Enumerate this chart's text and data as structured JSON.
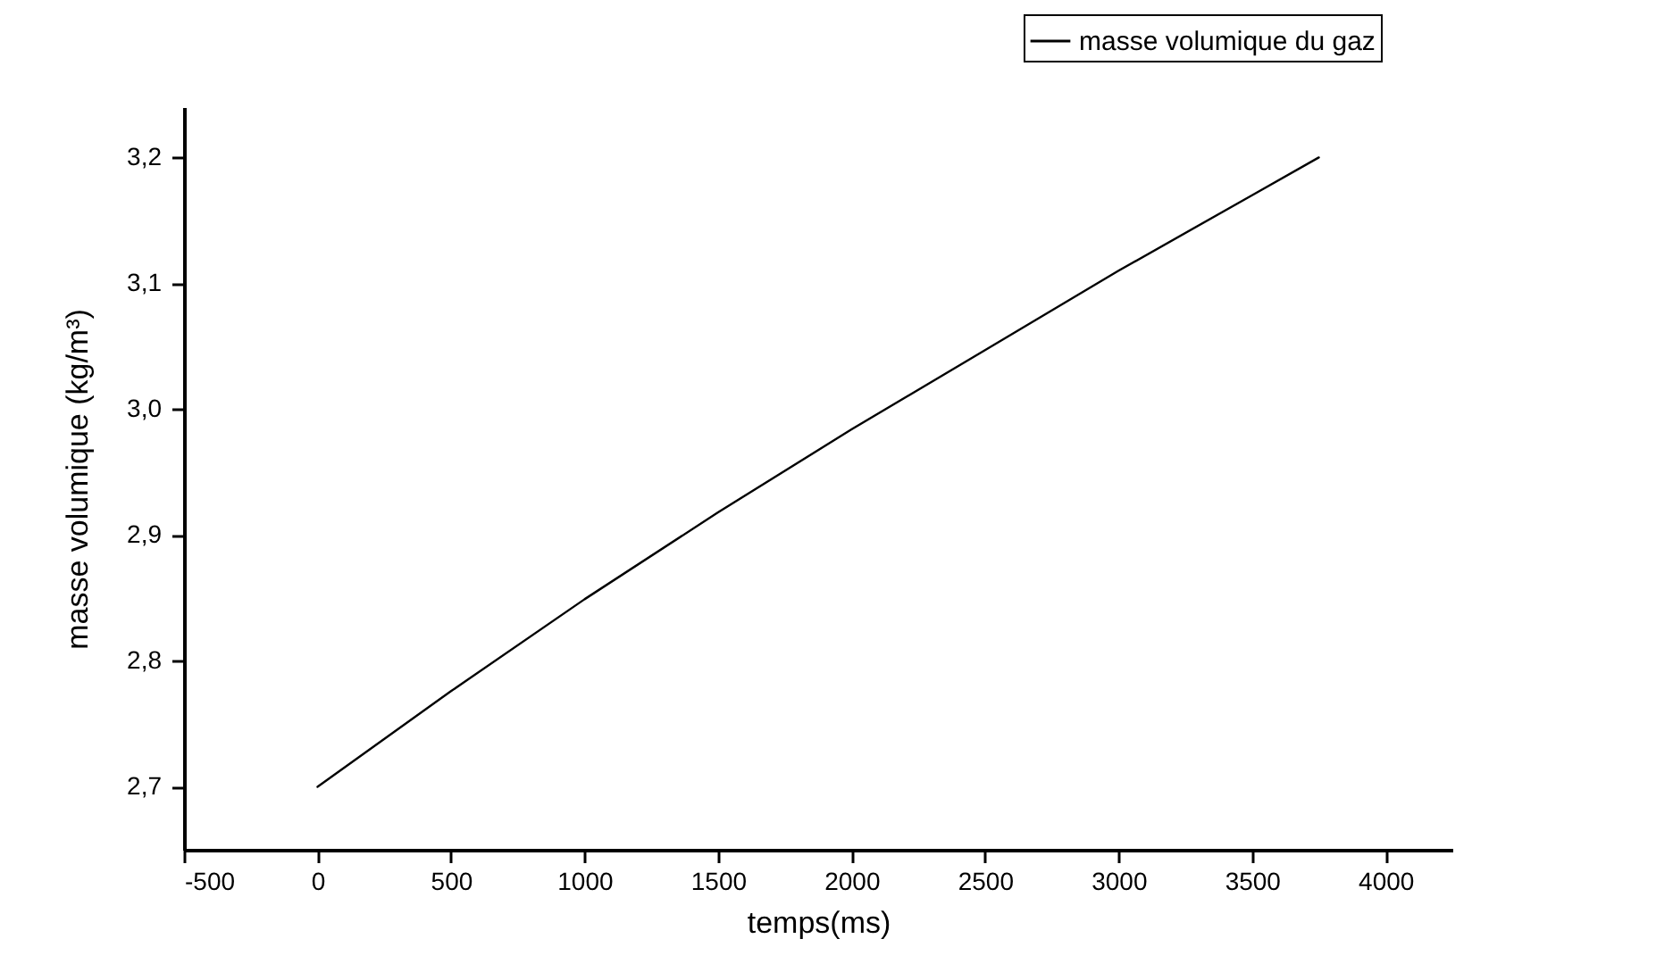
{
  "chart_data": {
    "type": "line",
    "xlabel": "temps(ms)",
    "ylabel": "masse volumique  (kg/m³)",
    "xlim": [
      -500,
      4250
    ],
    "xticks": [
      -500,
      0,
      500,
      1000,
      1500,
      2000,
      2500,
      3000,
      3500,
      4000
    ],
    "ylim": [
      2.65,
      3.24
    ],
    "yticks": [
      {
        "value": 2.7,
        "label": "2,7"
      },
      {
        "value": 2.8,
        "label": "2,8"
      },
      {
        "value": 2.9,
        "label": "2,9"
      },
      {
        "value": 3.0,
        "label": "3,0"
      },
      {
        "value": 3.1,
        "label": "3,1"
      },
      {
        "value": 3.2,
        "label": "3,2"
      }
    ],
    "x": [
      0,
      500,
      1000,
      1500,
      2000,
      2500,
      3000,
      3500,
      3750
    ],
    "series": [
      {
        "name": "masse volumique du gaz",
        "color": "#000000",
        "values": [
          2.7,
          2.776,
          2.849,
          2.918,
          2.984,
          3.047,
          3.11,
          3.17,
          3.2
        ]
      }
    ],
    "grid": false,
    "legend": "top right",
    "marker": "none",
    "line_style": "solid"
  }
}
